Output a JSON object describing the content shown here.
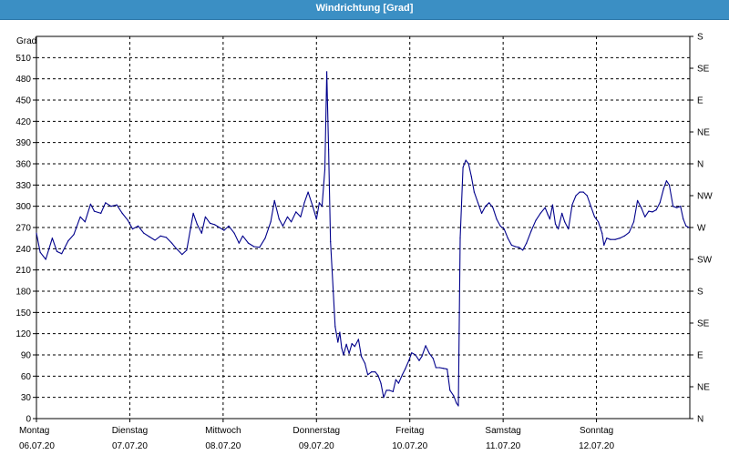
{
  "chart_title": "Windrichtung [Grad]",
  "chart_data": {
    "type": "line",
    "title": "Windrichtung [Grad]",
    "ylabel": "Grad",
    "ylim": [
      0,
      540
    ],
    "yticks": [
      0,
      30,
      60,
      90,
      120,
      150,
      180,
      210,
      240,
      270,
      300,
      330,
      360,
      390,
      420,
      450,
      480,
      510
    ],
    "right_axis_labels": [
      "N",
      "NE",
      "E",
      "SE",
      "S",
      "SW",
      "W",
      "NW",
      "N",
      "NE",
      "E",
      "SE",
      "S"
    ],
    "x_unit": "days",
    "xlim": [
      0,
      7
    ],
    "x_ticks": [
      {
        "day": "Montag",
        "date": "06.07.20"
      },
      {
        "day": "Dienstag",
        "date": "07.07.20"
      },
      {
        "day": "Mittwoch",
        "date": "08.07.20"
      },
      {
        "day": "Donnerstag",
        "date": "09.07.20"
      },
      {
        "day": "Freitag",
        "date": "10.07.20"
      },
      {
        "day": "Samstag",
        "date": "11.07.20"
      },
      {
        "day": "Sonntag",
        "date": "12.07.20"
      }
    ],
    "grid": true,
    "line_color": "#00008b",
    "series": [
      {
        "values": [
          [
            0.0,
            262
          ],
          [
            0.04,
            235
          ],
          [
            0.1,
            225
          ],
          [
            0.17,
            255
          ],
          [
            0.22,
            236
          ],
          [
            0.27,
            233
          ],
          [
            0.34,
            251
          ],
          [
            0.4,
            260
          ],
          [
            0.47,
            285
          ],
          [
            0.52,
            278
          ],
          [
            0.58,
            303
          ],
          [
            0.62,
            293
          ],
          [
            0.69,
            290
          ],
          [
            0.74,
            305
          ],
          [
            0.8,
            300
          ],
          [
            0.86,
            302
          ],
          [
            0.92,
            290
          ],
          [
            0.98,
            280
          ],
          [
            1.03,
            268
          ],
          [
            1.09,
            272
          ],
          [
            1.15,
            262
          ],
          [
            1.21,
            257
          ],
          [
            1.27,
            252
          ],
          [
            1.33,
            258
          ],
          [
            1.39,
            256
          ],
          [
            1.45,
            248
          ],
          [
            1.5,
            240
          ],
          [
            1.56,
            232
          ],
          [
            1.61,
            238
          ],
          [
            1.65,
            268
          ],
          [
            1.68,
            290
          ],
          [
            1.72,
            275
          ],
          [
            1.77,
            262
          ],
          [
            1.81,
            285
          ],
          [
            1.86,
            276
          ],
          [
            1.91,
            274
          ],
          [
            1.96,
            270
          ],
          [
            2.01,
            266
          ],
          [
            2.06,
            272
          ],
          [
            2.12,
            262
          ],
          [
            2.17,
            248
          ],
          [
            2.21,
            258
          ],
          [
            2.27,
            248
          ],
          [
            2.33,
            243
          ],
          [
            2.39,
            242
          ],
          [
            2.45,
            255
          ],
          [
            2.51,
            278
          ],
          [
            2.55,
            308
          ],
          [
            2.6,
            282
          ],
          [
            2.64,
            272
          ],
          [
            2.69,
            285
          ],
          [
            2.73,
            278
          ],
          [
            2.78,
            292
          ],
          [
            2.83,
            285
          ],
          [
            2.87,
            305
          ],
          [
            2.91,
            320
          ],
          [
            2.96,
            300
          ],
          [
            3.0,
            282
          ],
          [
            3.03,
            305
          ],
          [
            3.06,
            300
          ],
          [
            3.09,
            352
          ],
          [
            3.11,
            490
          ],
          [
            3.13,
            380
          ],
          [
            3.15,
            250
          ],
          [
            3.18,
            180
          ],
          [
            3.2,
            130
          ],
          [
            3.23,
            108
          ],
          [
            3.25,
            122
          ],
          [
            3.27,
            100
          ],
          [
            3.29,
            90
          ],
          [
            3.32,
            105
          ],
          [
            3.35,
            92
          ],
          [
            3.38,
            106
          ],
          [
            3.41,
            102
          ],
          [
            3.45,
            112
          ],
          [
            3.48,
            88
          ],
          [
            3.52,
            78
          ],
          [
            3.55,
            62
          ],
          [
            3.59,
            66
          ],
          [
            3.63,
            66
          ],
          [
            3.66,
            61
          ],
          [
            3.69,
            50
          ],
          [
            3.72,
            30
          ],
          [
            3.75,
            40
          ],
          [
            3.78,
            40
          ],
          [
            3.82,
            38
          ],
          [
            3.85,
            55
          ],
          [
            3.88,
            50
          ],
          [
            3.92,
            62
          ],
          [
            3.95,
            70
          ],
          [
            3.99,
            82
          ],
          [
            4.02,
            93
          ],
          [
            4.06,
            90
          ],
          [
            4.1,
            82
          ],
          [
            4.13,
            88
          ],
          [
            4.17,
            103
          ],
          [
            4.21,
            92
          ],
          [
            4.25,
            85
          ],
          [
            4.28,
            72
          ],
          [
            4.32,
            72
          ],
          [
            4.36,
            71
          ],
          [
            4.4,
            70
          ],
          [
            4.43,
            40
          ],
          [
            4.47,
            32
          ],
          [
            4.5,
            22
          ],
          [
            4.52,
            18
          ],
          [
            4.54,
            255
          ],
          [
            4.57,
            355
          ],
          [
            4.6,
            365
          ],
          [
            4.63,
            360
          ],
          [
            4.66,
            342
          ],
          [
            4.69,
            320
          ],
          [
            4.73,
            305
          ],
          [
            4.77,
            290
          ],
          [
            4.81,
            300
          ],
          [
            4.85,
            305
          ],
          [
            4.89,
            298
          ],
          [
            4.93,
            282
          ],
          [
            4.97,
            272
          ],
          [
            5.01,
            268
          ],
          [
            5.05,
            255
          ],
          [
            5.09,
            245
          ],
          [
            5.13,
            243
          ],
          [
            5.17,
            242
          ],
          [
            5.21,
            238
          ],
          [
            5.25,
            248
          ],
          [
            5.3,
            265
          ],
          [
            5.35,
            280
          ],
          [
            5.4,
            290
          ],
          [
            5.45,
            298
          ],
          [
            5.48,
            288
          ],
          [
            5.5,
            282
          ],
          [
            5.53,
            302
          ],
          [
            5.56,
            275
          ],
          [
            5.59,
            268
          ],
          [
            5.63,
            290
          ],
          [
            5.66,
            278
          ],
          [
            5.7,
            268
          ],
          [
            5.74,
            302
          ],
          [
            5.78,
            315
          ],
          [
            5.82,
            320
          ],
          [
            5.86,
            320
          ],
          [
            5.9,
            315
          ],
          [
            5.94,
            300
          ],
          [
            5.98,
            285
          ],
          [
            6.02,
            278
          ],
          [
            6.06,
            262
          ],
          [
            6.08,
            245
          ],
          [
            6.11,
            255
          ],
          [
            6.15,
            253
          ],
          [
            6.2,
            253
          ],
          [
            6.25,
            255
          ],
          [
            6.3,
            258
          ],
          [
            6.35,
            263
          ],
          [
            6.4,
            278
          ],
          [
            6.44,
            308
          ],
          [
            6.48,
            298
          ],
          [
            6.52,
            285
          ],
          [
            6.56,
            293
          ],
          [
            6.6,
            292
          ],
          [
            6.64,
            295
          ],
          [
            6.68,
            305
          ],
          [
            6.72,
            325
          ],
          [
            6.75,
            336
          ],
          [
            6.78,
            330
          ],
          [
            6.82,
            300
          ],
          [
            6.86,
            298
          ],
          [
            6.9,
            300
          ],
          [
            6.93,
            282
          ],
          [
            6.96,
            272
          ],
          [
            6.99,
            270
          ]
        ]
      }
    ]
  }
}
